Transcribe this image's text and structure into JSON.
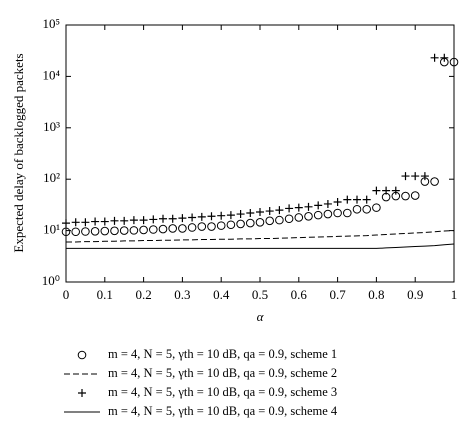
{
  "chart_data": {
    "type": "line",
    "y_label": "Expected delay of backlogged packets",
    "x_label": "α",
    "log_y": true,
    "x": [
      0,
      0.025,
      0.05,
      0.075,
      0.1,
      0.125,
      0.15,
      0.175,
      0.2,
      0.225,
      0.25,
      0.275,
      0.3,
      0.325,
      0.35,
      0.375,
      0.4,
      0.425,
      0.45,
      0.475,
      0.5,
      0.525,
      0.55,
      0.575,
      0.6,
      0.625,
      0.65,
      0.675,
      0.7,
      0.725,
      0.75,
      0.775,
      0.8,
      0.825,
      0.85,
      0.875,
      0.9,
      0.925,
      0.95,
      0.975,
      1
    ],
    "series": [
      {
        "name": "m = 4, N = 5, γth = 10 dB, qa = 0.9, scheme 1",
        "style": "circle",
        "color": "#000000",
        "values": [
          9.5,
          9.5,
          9.6,
          9.7,
          9.8,
          9.9,
          10,
          10.1,
          10.3,
          10.5,
          10.7,
          11,
          11,
          11.5,
          12,
          12,
          12.5,
          13,
          13.5,
          14,
          14.5,
          15.5,
          16,
          17,
          18,
          19,
          20,
          21,
          22,
          22,
          26,
          26,
          28,
          45,
          47,
          47,
          48,
          90,
          90,
          19000,
          19000
        ]
      },
      {
        "name": "m = 4, N = 5, γth = 10 dB, qa = 0.9, scheme 2",
        "style": "dashed",
        "color": "#000000",
        "values": [
          6,
          6,
          6.1,
          6.1,
          6.2,
          6.2,
          6.3,
          6.3,
          6.4,
          6.4,
          6.5,
          6.5,
          6.6,
          6.6,
          6.7,
          6.7,
          6.8,
          6.8,
          6.9,
          6.9,
          7,
          7,
          7.1,
          7.2,
          7.3,
          7.4,
          7.5,
          7.6,
          7.7,
          7.8,
          7.9,
          8,
          8.2,
          8.4,
          8.6,
          8.8,
          9,
          9.2,
          9.5,
          9.8,
          10
        ]
      },
      {
        "name": "m = 4, N = 5, γth = 10 dB, qa = 0.9, scheme 3",
        "style": "plus",
        "color": "#000000",
        "values": [
          14,
          14.5,
          14.5,
          15,
          15,
          15.5,
          15.5,
          16,
          16,
          16.5,
          17,
          17,
          17.5,
          18,
          18.5,
          19,
          19.5,
          20,
          21,
          22,
          23,
          24,
          25,
          27,
          28,
          29,
          31,
          33,
          36,
          40,
          40,
          40,
          60,
          60,
          60,
          115,
          115,
          115,
          23000,
          23000,
          null
        ]
      },
      {
        "name": "m = 4, N = 5, γth = 10 dB, qa = 0.9, scheme 4",
        "style": "solid",
        "color": "#000000",
        "values": [
          4.5,
          4.5,
          4.5,
          4.5,
          4.5,
          4.5,
          4.5,
          4.5,
          4.5,
          4.5,
          4.5,
          4.5,
          4.5,
          4.5,
          4.5,
          4.5,
          4.5,
          4.5,
          4.5,
          4.5,
          4.5,
          4.5,
          4.5,
          4.5,
          4.5,
          4.5,
          4.5,
          4.5,
          4.5,
          4.5,
          4.5,
          4.5,
          4.5,
          4.6,
          4.7,
          4.8,
          4.9,
          5,
          5.1,
          5.3,
          5.5
        ]
      }
    ],
    "xlim": [
      0,
      1
    ],
    "xticks": [
      0,
      0.1,
      0.2,
      0.3,
      0.4,
      0.5,
      0.6,
      0.7,
      0.8,
      0.9,
      1
    ],
    "ylim": [
      1,
      100000
    ],
    "yticks": [
      {
        "value": 1,
        "label": "10⁰"
      },
      {
        "value": 10,
        "label": "10¹"
      },
      {
        "value": 100,
        "label": "10²"
      },
      {
        "value": 1000,
        "label": "10³"
      },
      {
        "value": 10000,
        "label": "10⁴"
      },
      {
        "value": 100000,
        "label": "10⁵"
      }
    ]
  }
}
